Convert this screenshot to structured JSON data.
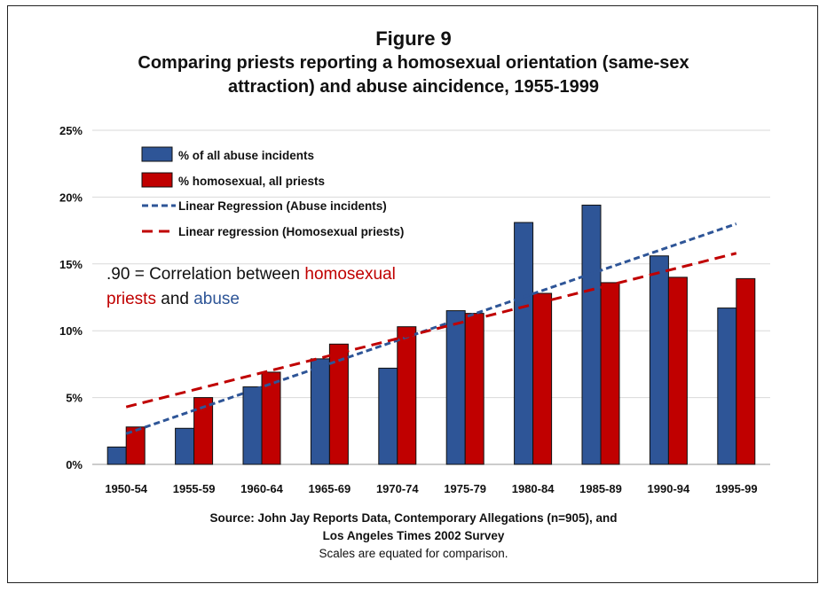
{
  "chart_data": {
    "type": "bar",
    "figure_label": "Figure 9",
    "title_lines": [
      "Comparing priests reporting a homosexual orientation (same-sex",
      "attraction) and abuse aincidence, 1955-1999"
    ],
    "categories": [
      "1950-54",
      "1955-59",
      "1960-64",
      "1965-69",
      "1970-74",
      "1975-79",
      "1980-84",
      "1985-89",
      "1990-94",
      "1995-99"
    ],
    "series": [
      {
        "name": "% of all abuse incidents",
        "color": "#2e5597",
        "values": [
          1.3,
          2.7,
          5.8,
          7.9,
          7.2,
          11.5,
          18.1,
          19.4,
          15.6,
          11.7
        ]
      },
      {
        "name": "% homosexual, all priests",
        "color": "#c00000",
        "values": [
          2.8,
          5.0,
          6.9,
          9.0,
          10.3,
          11.3,
          12.8,
          13.6,
          14.0,
          13.9
        ]
      }
    ],
    "trendlines": [
      {
        "name": "Linear Regression (Abuse incidents)",
        "color": "#2e5597",
        "start": 2.3,
        "end": 18.0
      },
      {
        "name": "Linear regression (Homosexual priests)",
        "color": "#c00000",
        "start": 4.3,
        "end": 15.8
      }
    ],
    "y_ticks": [
      "0%",
      "5%",
      "10%",
      "15%",
      "20%",
      "25%"
    ],
    "ylim": [
      0,
      25
    ],
    "legend_position": "top-left",
    "grid": true,
    "annotation": {
      "value": ".90",
      "sep": " = Correlation between ",
      "word1": "homosexual",
      "word2": "priests",
      "and": " and ",
      "word3": "abuse"
    },
    "source_lines": [
      "Source: John Jay Reports Data, Contemporary Allegations (n=905), and",
      "Los Angeles Times 2002 Survey"
    ],
    "note": "Scales are equated for comparison."
  }
}
